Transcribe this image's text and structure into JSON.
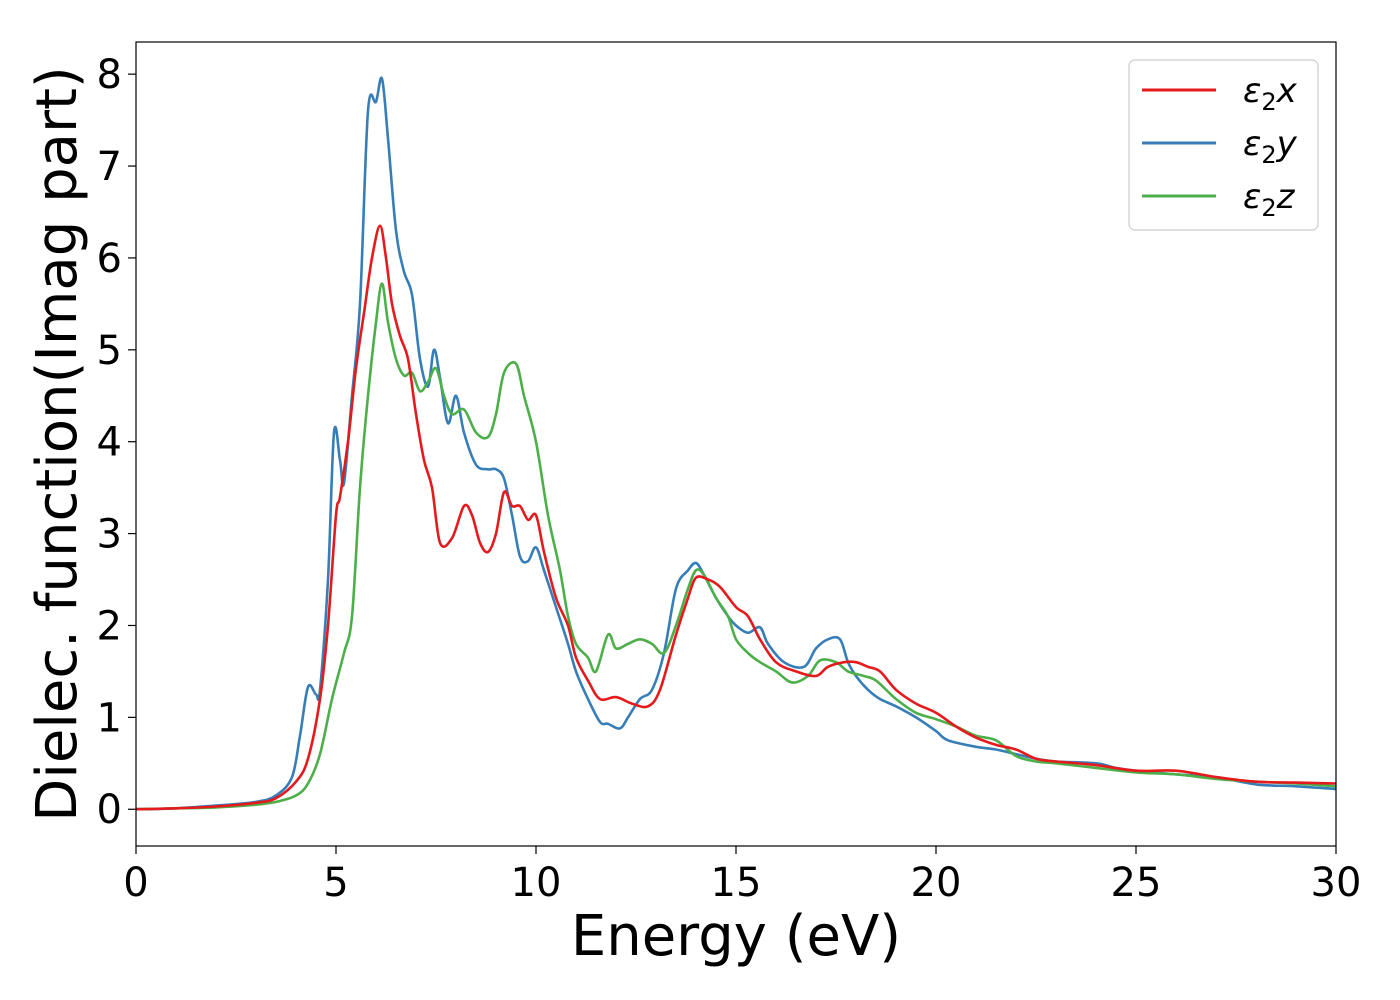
{
  "chart_data": {
    "type": "line",
    "title": "",
    "xlabel": "Energy (eV)",
    "ylabel": "Dielec. function(Imag part)",
    "xlim": [
      0,
      30
    ],
    "ylim": [
      -0.4,
      8.35
    ],
    "x_ticks": [
      0,
      5,
      10,
      15,
      20,
      25,
      30
    ],
    "y_ticks": [
      0,
      1,
      2,
      3,
      4,
      5,
      6,
      7,
      8
    ],
    "grid": false,
    "legend_position": "top-right",
    "series": [
      {
        "name": "ε2x",
        "legend_base": "ε",
        "legend_sub": "2",
        "legend_suffix": "x",
        "color": "#e41a1c",
        "points": [
          [
            0,
            0
          ],
          [
            1,
            0.01
          ],
          [
            2,
            0.03
          ],
          [
            3,
            0.07
          ],
          [
            3.5,
            0.12
          ],
          [
            4,
            0.3
          ],
          [
            4.3,
            0.55
          ],
          [
            4.6,
            1.2
          ],
          [
            4.8,
            2.0
          ],
          [
            5.0,
            3.2
          ],
          [
            5.1,
            3.4
          ],
          [
            5.3,
            4.0
          ],
          [
            5.5,
            4.8
          ],
          [
            5.7,
            5.4
          ],
          [
            5.9,
            6.0
          ],
          [
            6.1,
            6.35
          ],
          [
            6.25,
            6.0
          ],
          [
            6.4,
            5.5
          ],
          [
            6.6,
            5.15
          ],
          [
            6.8,
            4.9
          ],
          [
            7.0,
            4.3
          ],
          [
            7.2,
            3.8
          ],
          [
            7.4,
            3.5
          ],
          [
            7.6,
            2.9
          ],
          [
            7.9,
            2.95
          ],
          [
            8.2,
            3.3
          ],
          [
            8.4,
            3.2
          ],
          [
            8.6,
            2.9
          ],
          [
            8.8,
            2.8
          ],
          [
            9.0,
            3.0
          ],
          [
            9.2,
            3.45
          ],
          [
            9.4,
            3.3
          ],
          [
            9.6,
            3.3
          ],
          [
            9.8,
            3.15
          ],
          [
            10.0,
            3.2
          ],
          [
            10.2,
            2.8
          ],
          [
            10.5,
            2.3
          ],
          [
            10.8,
            2.0
          ],
          [
            11.0,
            1.65
          ],
          [
            11.3,
            1.4
          ],
          [
            11.6,
            1.2
          ],
          [
            12.0,
            1.22
          ],
          [
            12.4,
            1.15
          ],
          [
            12.8,
            1.12
          ],
          [
            13.1,
            1.3
          ],
          [
            13.5,
            1.9
          ],
          [
            13.8,
            2.3
          ],
          [
            14.0,
            2.52
          ],
          [
            14.3,
            2.5
          ],
          [
            14.6,
            2.42
          ],
          [
            15.0,
            2.2
          ],
          [
            15.3,
            2.1
          ],
          [
            15.6,
            1.85
          ],
          [
            16.0,
            1.6
          ],
          [
            16.5,
            1.5
          ],
          [
            17.0,
            1.45
          ],
          [
            17.3,
            1.55
          ],
          [
            17.7,
            1.6
          ],
          [
            18.0,
            1.6
          ],
          [
            18.3,
            1.55
          ],
          [
            18.6,
            1.5
          ],
          [
            19.0,
            1.3
          ],
          [
            19.5,
            1.15
          ],
          [
            20.0,
            1.05
          ],
          [
            20.5,
            0.9
          ],
          [
            21.0,
            0.78
          ],
          [
            21.5,
            0.7
          ],
          [
            22.0,
            0.65
          ],
          [
            22.5,
            0.55
          ],
          [
            23.0,
            0.52
          ],
          [
            24.0,
            0.48
          ],
          [
            25.0,
            0.42
          ],
          [
            26.0,
            0.42
          ],
          [
            27.0,
            0.35
          ],
          [
            28.0,
            0.3
          ],
          [
            29.0,
            0.29
          ],
          [
            30.0,
            0.28
          ]
        ]
      },
      {
        "name": "ε2y",
        "legend_base": "ε",
        "legend_sub": "2",
        "legend_suffix": "y",
        "color": "#377eb8",
        "points": [
          [
            0,
            0
          ],
          [
            1,
            0.01
          ],
          [
            2,
            0.04
          ],
          [
            3,
            0.08
          ],
          [
            3.5,
            0.15
          ],
          [
            3.9,
            0.35
          ],
          [
            4.1,
            0.8
          ],
          [
            4.3,
            1.33
          ],
          [
            4.5,
            1.25
          ],
          [
            4.6,
            1.3
          ],
          [
            4.8,
            2.5
          ],
          [
            4.95,
            4.1
          ],
          [
            5.1,
            3.8
          ],
          [
            5.2,
            3.55
          ],
          [
            5.4,
            4.5
          ],
          [
            5.6,
            5.5
          ],
          [
            5.8,
            7.6
          ],
          [
            6.0,
            7.7
          ],
          [
            6.15,
            7.95
          ],
          [
            6.3,
            7.3
          ],
          [
            6.5,
            6.3
          ],
          [
            6.7,
            5.85
          ],
          [
            6.9,
            5.6
          ],
          [
            7.1,
            4.9
          ],
          [
            7.3,
            4.6
          ],
          [
            7.45,
            5.0
          ],
          [
            7.6,
            4.7
          ],
          [
            7.8,
            4.2
          ],
          [
            8.0,
            4.5
          ],
          [
            8.2,
            4.1
          ],
          [
            8.5,
            3.75
          ],
          [
            8.8,
            3.7
          ],
          [
            9.0,
            3.7
          ],
          [
            9.2,
            3.6
          ],
          [
            9.4,
            3.2
          ],
          [
            9.6,
            2.75
          ],
          [
            9.8,
            2.7
          ],
          [
            10.0,
            2.85
          ],
          [
            10.2,
            2.6
          ],
          [
            10.5,
            2.2
          ],
          [
            10.8,
            1.8
          ],
          [
            11.0,
            1.5
          ],
          [
            11.3,
            1.2
          ],
          [
            11.6,
            0.95
          ],
          [
            11.8,
            0.93
          ],
          [
            12.1,
            0.88
          ],
          [
            12.3,
            1.0
          ],
          [
            12.6,
            1.2
          ],
          [
            12.9,
            1.3
          ],
          [
            13.2,
            1.7
          ],
          [
            13.5,
            2.4
          ],
          [
            13.8,
            2.6
          ],
          [
            14.0,
            2.68
          ],
          [
            14.2,
            2.55
          ],
          [
            14.5,
            2.3
          ],
          [
            14.8,
            2.1
          ],
          [
            15.0,
            2.0
          ],
          [
            15.3,
            1.92
          ],
          [
            15.6,
            1.98
          ],
          [
            15.8,
            1.8
          ],
          [
            16.2,
            1.6
          ],
          [
            16.7,
            1.55
          ],
          [
            17.0,
            1.75
          ],
          [
            17.3,
            1.85
          ],
          [
            17.6,
            1.85
          ],
          [
            17.8,
            1.6
          ],
          [
            18.0,
            1.45
          ],
          [
            18.3,
            1.3
          ],
          [
            18.6,
            1.2
          ],
          [
            19.0,
            1.12
          ],
          [
            19.5,
            1.0
          ],
          [
            20.0,
            0.85
          ],
          [
            20.3,
            0.75
          ],
          [
            21.0,
            0.68
          ],
          [
            21.5,
            0.65
          ],
          [
            22.0,
            0.6
          ],
          [
            22.5,
            0.55
          ],
          [
            23.0,
            0.52
          ],
          [
            24.0,
            0.5
          ],
          [
            24.5,
            0.45
          ],
          [
            25.0,
            0.42
          ],
          [
            26.0,
            0.38
          ],
          [
            27.0,
            0.35
          ],
          [
            28.0,
            0.27
          ],
          [
            29.0,
            0.25
          ],
          [
            30.0,
            0.22
          ]
        ]
      },
      {
        "name": "ε2z",
        "legend_base": "ε",
        "legend_sub": "2",
        "legend_suffix": "z",
        "color": "#4daf4a",
        "points": [
          [
            0,
            0
          ],
          [
            1,
            0.01
          ],
          [
            2,
            0.02
          ],
          [
            3,
            0.05
          ],
          [
            3.5,
            0.08
          ],
          [
            4.0,
            0.15
          ],
          [
            4.3,
            0.28
          ],
          [
            4.6,
            0.6
          ],
          [
            4.9,
            1.2
          ],
          [
            5.2,
            1.7
          ],
          [
            5.4,
            2.1
          ],
          [
            5.6,
            3.5
          ],
          [
            5.8,
            4.5
          ],
          [
            6.0,
            5.3
          ],
          [
            6.15,
            5.72
          ],
          [
            6.3,
            5.3
          ],
          [
            6.5,
            4.9
          ],
          [
            6.7,
            4.72
          ],
          [
            6.9,
            4.75
          ],
          [
            7.1,
            4.55
          ],
          [
            7.3,
            4.65
          ],
          [
            7.5,
            4.8
          ],
          [
            7.7,
            4.5
          ],
          [
            7.9,
            4.3
          ],
          [
            8.2,
            4.35
          ],
          [
            8.5,
            4.1
          ],
          [
            8.8,
            4.05
          ],
          [
            9.0,
            4.3
          ],
          [
            9.2,
            4.75
          ],
          [
            9.5,
            4.85
          ],
          [
            9.7,
            4.5
          ],
          [
            10.0,
            4.0
          ],
          [
            10.3,
            3.2
          ],
          [
            10.6,
            2.6
          ],
          [
            10.8,
            2.1
          ],
          [
            11.0,
            1.8
          ],
          [
            11.3,
            1.65
          ],
          [
            11.5,
            1.5
          ],
          [
            11.8,
            1.9
          ],
          [
            12.0,
            1.75
          ],
          [
            12.3,
            1.8
          ],
          [
            12.6,
            1.85
          ],
          [
            12.9,
            1.8
          ],
          [
            13.2,
            1.7
          ],
          [
            13.5,
            2.0
          ],
          [
            13.8,
            2.4
          ],
          [
            14.0,
            2.6
          ],
          [
            14.2,
            2.55
          ],
          [
            14.5,
            2.3
          ],
          [
            14.8,
            2.1
          ],
          [
            15.0,
            1.85
          ],
          [
            15.3,
            1.7
          ],
          [
            15.6,
            1.6
          ],
          [
            16.0,
            1.5
          ],
          [
            16.4,
            1.38
          ],
          [
            16.8,
            1.45
          ],
          [
            17.1,
            1.62
          ],
          [
            17.5,
            1.6
          ],
          [
            17.8,
            1.5
          ],
          [
            18.2,
            1.45
          ],
          [
            18.5,
            1.4
          ],
          [
            19.0,
            1.2
          ],
          [
            19.5,
            1.05
          ],
          [
            20.0,
            0.98
          ],
          [
            20.5,
            0.9
          ],
          [
            21.0,
            0.8
          ],
          [
            21.5,
            0.75
          ],
          [
            22.0,
            0.58
          ],
          [
            22.5,
            0.52
          ],
          [
            23.0,
            0.5
          ],
          [
            24.0,
            0.45
          ],
          [
            25.0,
            0.4
          ],
          [
            26.0,
            0.38
          ],
          [
            27.0,
            0.33
          ],
          [
            28.0,
            0.3
          ],
          [
            29.0,
            0.28
          ],
          [
            30.0,
            0.25
          ]
        ]
      }
    ]
  }
}
